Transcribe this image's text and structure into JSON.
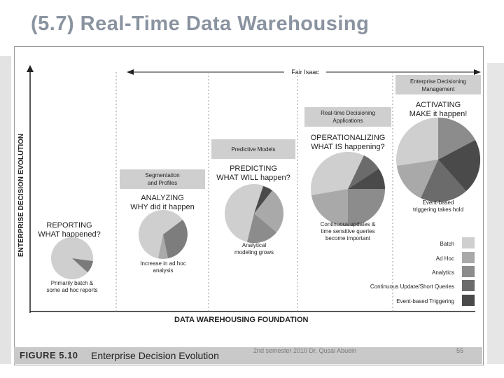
{
  "slide": {
    "title": "(5.7) Real-Time Data Warehousing",
    "footer_left": "2nd semester 2010 Dr. Qusai Abuein",
    "footer_right": "55"
  },
  "figure": {
    "number": "FIGURE 5.10",
    "caption": "Enterprise Decision Evolution",
    "y_axis_label": "ENTERPRISE DECISION EVOLUTION",
    "x_axis_label": "DATA WAREHOUSING FOUNDATION",
    "top_label": "Fair Isaac",
    "stages": [
      {
        "heading_1": "REPORTING",
        "heading_2": "WHAT happened?",
        "caption_1": "Primarily batch &",
        "caption_2": "some ad hoc reports",
        "box_1": "",
        "box_2": ""
      },
      {
        "heading_1": "ANALYZING",
        "heading_2": "WHY did it happen",
        "caption_1": "Increase in ad hoc",
        "caption_2": "analysis",
        "box_1": "Segmentation",
        "box_2": "and Profiles"
      },
      {
        "heading_1": "PREDICTING",
        "heading_2": "WHAT WILL happen?",
        "caption_1": "Analytical",
        "caption_2": "modeling grows",
        "box_1": "Predictive Models",
        "box_2": ""
      },
      {
        "heading_1": "OPERATIONALIZING",
        "heading_2": "WHAT IS happening?",
        "caption_1": "Continuous updates &",
        "caption_2": "time sensitive queries",
        "caption_3": "become important",
        "box_1": "Real-time Decisioning",
        "box_2": "Applications"
      },
      {
        "heading_1": "ACTIVATING",
        "heading_2": "MAKE it happen!",
        "caption_1": "Event-based",
        "caption_2": "triggering takes hold",
        "box_1": "Enterprise Decisioning",
        "box_2": "Management"
      }
    ],
    "legend": [
      {
        "label": "Batch",
        "color": "#cfcfcf"
      },
      {
        "label": "Ad Hoc",
        "color": "#a9a9a9"
      },
      {
        "label": "Analytics",
        "color": "#8c8c8c"
      },
      {
        "label": "Continuous Update/Short Queries",
        "color": "#6b6b6b"
      },
      {
        "label": "Event-based Triggering",
        "color": "#4a4a4a"
      }
    ]
  }
}
